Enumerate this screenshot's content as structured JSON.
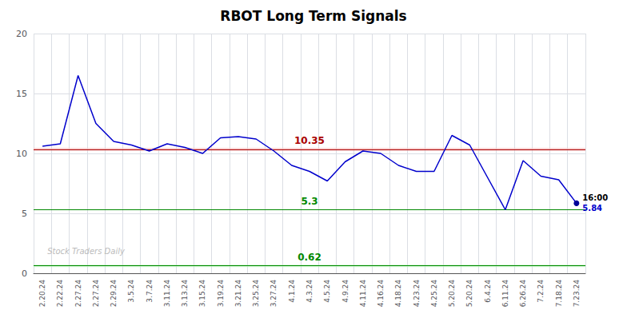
{
  "chart_data": {
    "type": "line",
    "title": "RBOT Long Term Signals",
    "categories": [
      "2.20.24",
      "2.22.24",
      "2.27.24",
      "2.27.24",
      "2.29.24",
      "3.5.24",
      "3.7.24",
      "3.11.24",
      "3.13.24",
      "3.15.24",
      "3.19.24",
      "3.21.24",
      "3.25.24",
      "3.27.24",
      "4.1.24",
      "4.3.24",
      "4.5.24",
      "4.9.24",
      "4.11.24",
      "4.16.24",
      "4.18.24",
      "4.23.24",
      "4.25.24",
      "5.20.24",
      "5.20.24",
      "6.4.24",
      "6.11.24",
      "6.26.24",
      "7.2.24",
      "7.18.24",
      "7.23.24"
    ],
    "values": [
      10.6,
      10.8,
      16.5,
      12.5,
      11.0,
      10.7,
      10.2,
      10.8,
      10.5,
      10.0,
      11.3,
      11.4,
      11.2,
      10.2,
      9.0,
      8.5,
      7.7,
      9.3,
      10.2,
      10.0,
      9.0,
      8.5,
      8.5,
      11.5,
      10.7,
      8.0,
      5.3,
      9.4,
      8.1,
      7.8,
      5.84
    ],
    "color": "#0000cc",
    "ylim": [
      0,
      20
    ],
    "yticks": [
      0,
      5,
      10,
      15,
      20
    ],
    "grid": true,
    "reference_lines": [
      {
        "value": 10.35,
        "label": "10.35",
        "color": "#aa0000",
        "band": [
          10.23,
          10.47
        ],
        "band_color": "#f5b8b8"
      },
      {
        "value": 5.3,
        "label": "5.3",
        "color": "#008800"
      },
      {
        "value": 0.62,
        "label": "0.62",
        "color": "#008800",
        "band": [
          0.52,
          0.72
        ],
        "band_color": "#b8f5b8"
      }
    ],
    "last_point": {
      "time_label": "16:00",
      "value_label": "5.84",
      "color": "#000099"
    },
    "watermark": {
      "text": "Stock Traders Daily",
      "color": "#bbbbbb"
    }
  }
}
